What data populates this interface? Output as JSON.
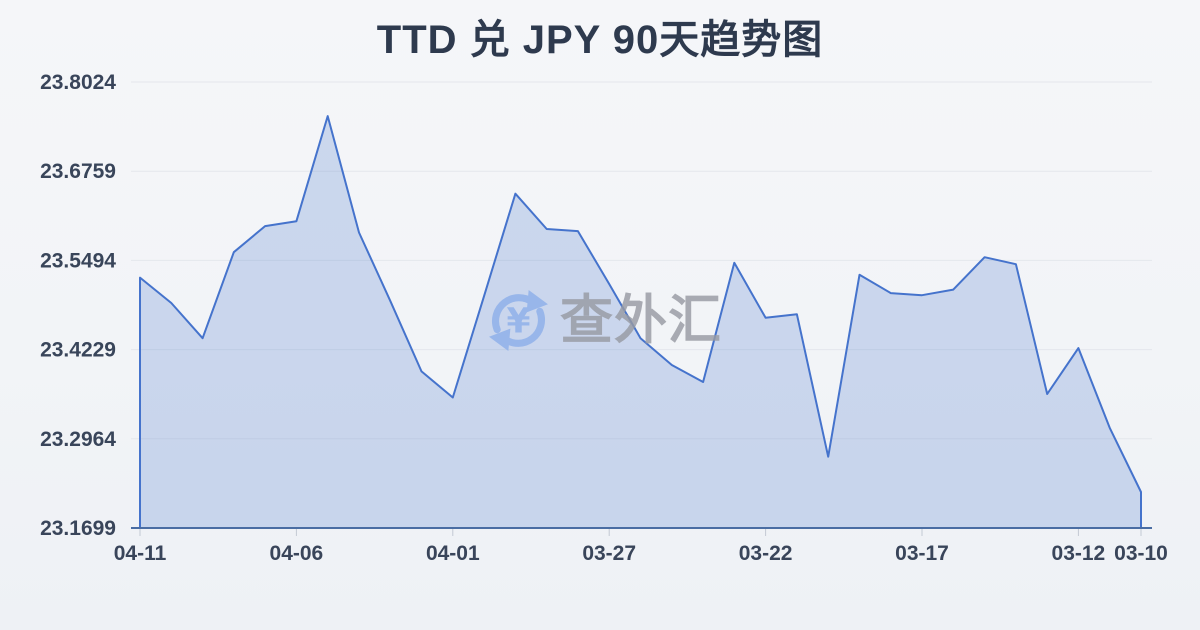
{
  "chart_data": {
    "type": "area",
    "title": "TTD 兑 JPY 90天趋势图",
    "xlabel": "",
    "ylabel": "",
    "x": [
      "04-11",
      "04-10",
      "04-09",
      "04-08",
      "04-07",
      "04-06",
      "04-05",
      "04-04",
      "04-03",
      "04-02",
      "04-01",
      "03-31",
      "03-30",
      "03-29",
      "03-28",
      "03-27",
      "03-26",
      "03-25",
      "03-24",
      "03-23",
      "03-22",
      "03-21",
      "03-20",
      "03-19",
      "03-18",
      "03-17",
      "03-16",
      "03-15",
      "03-14",
      "03-13",
      "03-12",
      "03-11",
      "03-10"
    ],
    "values": [
      23.525,
      23.489,
      23.439,
      23.561,
      23.598,
      23.605,
      23.754,
      23.589,
      23.492,
      23.392,
      23.355,
      23.499,
      23.644,
      23.594,
      23.591,
      23.516,
      23.439,
      23.401,
      23.377,
      23.546,
      23.468,
      23.473,
      23.271,
      23.529,
      23.503,
      23.5,
      23.508,
      23.554,
      23.544,
      23.36,
      23.425,
      23.312,
      23.221
    ],
    "x_tick_labels": [
      "04-11",
      "04-06",
      "04-01",
      "03-27",
      "03-22",
      "03-17",
      "03-12",
      "03-10"
    ],
    "x_tick_indices": [
      0,
      5,
      10,
      15,
      20,
      25,
      30,
      32
    ],
    "y_ticks": [
      "23.8024",
      "23.6759",
      "23.5494",
      "23.4229",
      "23.2964",
      "23.1699"
    ],
    "ylim": [
      23.1699,
      23.8024
    ],
    "grid": "horizontal-only",
    "legend": "none",
    "line_color": "#4573cc",
    "area_color": "rgba(69,115,204,0.23)",
    "axis_line_color": "#4a6da3",
    "grid_color": "#e4e7ec",
    "tick_color": "#c3c9d4",
    "label_color": "#39455a",
    "title_color": "#2e3a4e"
  },
  "watermark": {
    "text": "查外汇",
    "icon": "currency-exchange-icon",
    "icon_color": "#92b2ea",
    "text_color": "#989ba3"
  }
}
